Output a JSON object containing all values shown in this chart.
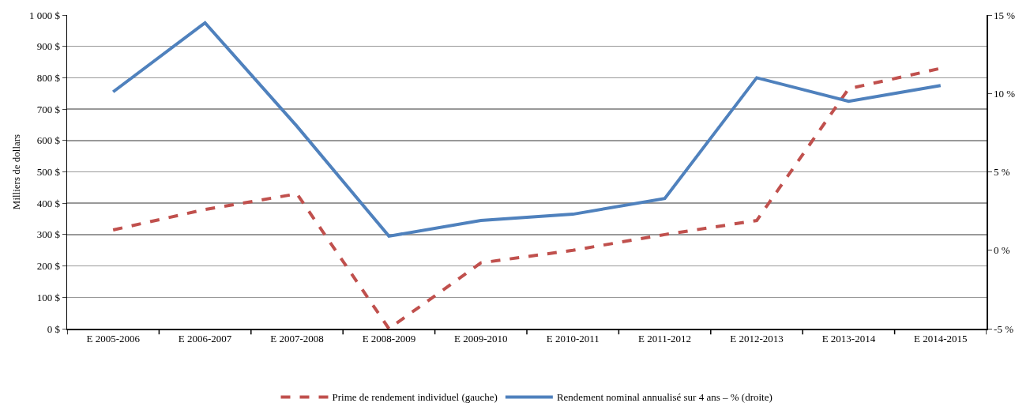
{
  "chart_data": {
    "type": "line",
    "ylabel": "Milliers de dollars",
    "categories": [
      "E 2005-2006",
      "E 2006-2007",
      "E 2007-2008",
      "E 2008-2009",
      "E 2009-2010",
      "E 2010-2011",
      "E 2011-2012",
      "E 2012-2013",
      "E 2013-2014",
      "E 2014-2015"
    ],
    "series": [
      {
        "name": "Prime de rendement individuel (gauche)",
        "color": "#c0504d",
        "line_style": "dashed",
        "values": [
          315,
          380,
          430,
          0,
          210,
          250,
          300,
          345,
          765,
          830
        ]
      },
      {
        "name": "Rendement nominal annualisé sur 4 ans – % (droite)",
        "color": "#4f81bd",
        "line_style": "solid",
        "axis": "y2",
        "values": [
          10.1,
          14.5,
          7.9,
          0.9,
          1.9,
          2.3,
          3.3,
          11.0,
          9.5,
          10.5
        ]
      }
    ],
    "ylim": [
      0,
      1000
    ],
    "yticks": [
      {
        "value": 0,
        "label": "0 $"
      },
      {
        "value": 100,
        "label": "100 $"
      },
      {
        "value": 200,
        "label": "200 $"
      },
      {
        "value": 300,
        "label": "300 $"
      },
      {
        "value": 400,
        "label": "400 $"
      },
      {
        "value": 500,
        "label": "500 $"
      },
      {
        "value": 600,
        "label": "600 $"
      },
      {
        "value": 700,
        "label": "700 $"
      },
      {
        "value": 800,
        "label": "800 $"
      },
      {
        "value": 900,
        "label": "900 $"
      },
      {
        "value": 1000,
        "label": "1 000 $"
      }
    ],
    "y2lim": [
      -5,
      15
    ],
    "y2ticks": [
      {
        "value": -5,
        "label": "-5 %"
      },
      {
        "value": 0,
        "label": "0 %"
      },
      {
        "value": 5,
        "label": "5 %"
      },
      {
        "value": 10,
        "label": "10 %"
      },
      {
        "value": 15,
        "label": "15 %"
      }
    ],
    "grid": "y",
    "legend": "bottom",
    "marker": "none"
  }
}
